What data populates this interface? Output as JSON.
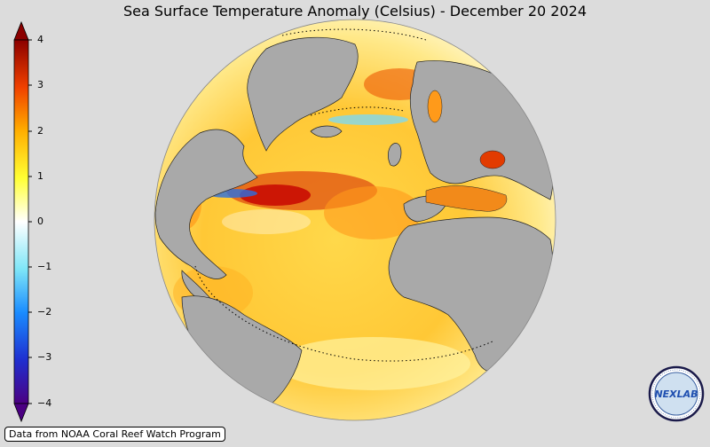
{
  "title": "Sea Surface Temperature Anomaly (Celsius) - December 20 2024",
  "colorbar": {
    "ticks": [
      "4",
      "3",
      "2",
      "1",
      "0",
      "−1",
      "−2",
      "−3",
      "−4"
    ],
    "min": -4,
    "max": 4,
    "colors": [
      "#4b0082",
      "#2233cc",
      "#1a7fff",
      "#5ed2f0",
      "#ffffff",
      "#ffff33",
      "#ffb400",
      "#ff6600",
      "#cc0000",
      "#7a0000"
    ]
  },
  "footer": "Data from NOAA Coral Reef Watch Program",
  "logo": {
    "text": "NEXLAB",
    "icon": "nexlab-logo"
  },
  "colors": {
    "background": "#dcdcdc",
    "land": "#a9a9a9",
    "warm": "#ffcc33",
    "hot": "#e23b00"
  }
}
